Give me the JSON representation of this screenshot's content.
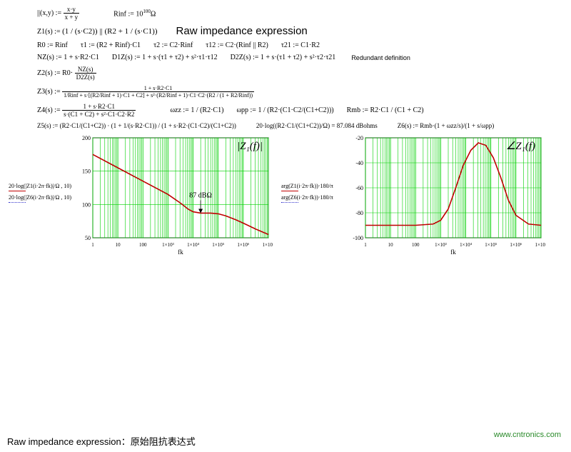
{
  "equations": {
    "row1": {
      "par_def": "||(x,y) := ",
      "par_frac_num": "x·y",
      "par_frac_den": "x + y",
      "rinf": "Rinf := 10",
      "rinf_exp": "100",
      "rinf_unit": "Ω"
    },
    "row2": {
      "z1": "Z1(s) := ",
      "z1_body": "(1 / (s·C2)) || (R2 + 1 / (s·C1))",
      "label": "Raw impedance expression"
    },
    "row3": {
      "r0": "R0 := Rinf",
      "tau1": "τ1 := (R2 + Rinf)·C1",
      "tau2": "τ2 := C2·Rinf",
      "tau12": "τ12 := C2·(Rinf || R2)",
      "tau21": "τ21 := C1·R2"
    },
    "row4": {
      "nz": "NZ(s) := 1 + s·R2·C1",
      "d1z": "D1Z(s) := 1 + s·(τ1 + τ2) + s²·τ1·τ12",
      "d2z": "D2Z(s) := 1 + s·(τ1 + τ2) + s²·τ2·τ21",
      "note": "Redundant definition"
    },
    "row5": {
      "z2": "Z2(s) := R0·",
      "z2_num": "NZ(s)",
      "z2_den": "D2Z(s)"
    },
    "row6": {
      "z3": "Z3(s) := ",
      "z3_num": "1 + s·R2·C1",
      "z3_den": "1/Rinf + s·[(R2/Rinf + 1)·C1 + C2] + s²·(R2/Rinf + 1)·C1·C2·(R2 / (1 + R2/Rinf))"
    },
    "row7": {
      "z4": "Z4(s) := ",
      "z4_num": "1 + s·R2·C1",
      "z4_den": "s·(C1 + C2) + s²·C1·C2·R2",
      "wzz": "ωzz := 1 / (R2·C1)",
      "wpp": "ωpp := 1 / (R2·(C1·C2/(C1+C2)))",
      "rmb": "Rmb := R2·C1 / (C1 + C2)"
    },
    "row8": {
      "z5": "Z5(s) := (R2·C1/(C1+C2)) · (1 + 1/(s·R2·C1)) / (1 + s·R2·(C1·C2)/(C1+C2))",
      "gain": "20·log((R2·C1/(C1+C2))/Ω) = 87.084   dBohms",
      "z6": "Z6(s) := Rmb·(1 + ωzz/s)/(1 + s/ωpp)"
    }
  },
  "mag_chart": {
    "title": "|Z₁(f)|",
    "marker_label": "87 dBΩ",
    "xlabel": "fk",
    "xticks": [
      "1",
      "10",
      "100",
      "1×10³",
      "1×10⁴",
      "1×10⁵",
      "1×10⁶",
      "1×10⁷"
    ],
    "yticks": [
      "200",
      "150",
      "100",
      "50"
    ],
    "ylim": [
      50,
      200
    ],
    "legend1_text": "20·log(|Z1(i·2π·fk)|/Ω , 10)",
    "legend2_text": "20·log(|Z6(i·2π·fk)|/Ω , 10)",
    "grid_color": "#00d000",
    "curve_color": "#c00000",
    "background": "#ffffff",
    "curve": [
      {
        "x": 0,
        "y": 175
      },
      {
        "x": 1,
        "y": 155
      },
      {
        "x": 2,
        "y": 135
      },
      {
        "x": 3,
        "y": 115
      },
      {
        "x": 3.5,
        "y": 102
      },
      {
        "x": 3.8,
        "y": 93
      },
      {
        "x": 4,
        "y": 89
      },
      {
        "x": 4.3,
        "y": 87
      },
      {
        "x": 4.7,
        "y": 87
      },
      {
        "x": 5,
        "y": 86
      },
      {
        "x": 5.3,
        "y": 83
      },
      {
        "x": 5.7,
        "y": 77
      },
      {
        "x": 6,
        "y": 72
      },
      {
        "x": 6.5,
        "y": 63
      },
      {
        "x": 7,
        "y": 55
      }
    ]
  },
  "phase_chart": {
    "title": "∠Z₁(f)",
    "xlabel": "fk",
    "xticks": [
      "1",
      "10",
      "100",
      "1×10³",
      "1×10⁴",
      "1×10⁵",
      "1×10⁶",
      "1×10⁷"
    ],
    "yticks": [
      "-20",
      "-40",
      "-60",
      "-80",
      "-100"
    ],
    "ylim": [
      -100,
      -20
    ],
    "legend1_text": "arg(Z1(i·2π·fk))·180/π",
    "legend2_text": "arg(Z6(i·2π·fk))·180/π",
    "grid_color": "#00d000",
    "curve_color": "#c00000",
    "background": "#ffffff",
    "curve": [
      {
        "x": 0,
        "y": -90
      },
      {
        "x": 1,
        "y": -90
      },
      {
        "x": 2,
        "y": -90
      },
      {
        "x": 2.7,
        "y": -89
      },
      {
        "x": 3,
        "y": -86
      },
      {
        "x": 3.3,
        "y": -77
      },
      {
        "x": 3.6,
        "y": -60
      },
      {
        "x": 3.9,
        "y": -42
      },
      {
        "x": 4.2,
        "y": -30
      },
      {
        "x": 4.5,
        "y": -24
      },
      {
        "x": 4.8,
        "y": -26
      },
      {
        "x": 5.1,
        "y": -36
      },
      {
        "x": 5.4,
        "y": -52
      },
      {
        "x": 5.7,
        "y": -70
      },
      {
        "x": 6,
        "y": -82
      },
      {
        "x": 6.5,
        "y": -89
      },
      {
        "x": 7,
        "y": -90
      }
    ]
  },
  "footer_text": "Raw impedance expression：原始阻抗表达式",
  "watermark": "www.cntronics.com"
}
